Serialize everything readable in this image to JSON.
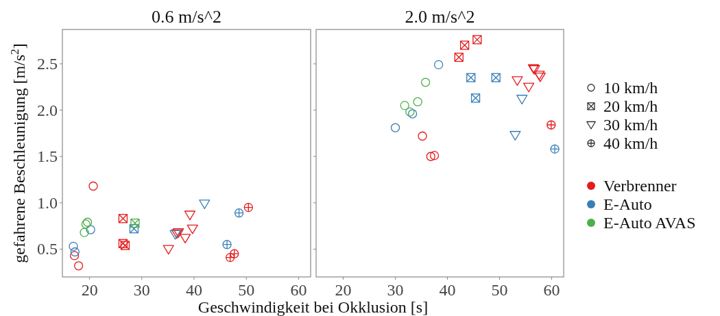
{
  "chart_data": [
    {
      "type": "scatter",
      "title": "0.6 m/s^2",
      "xlabel": "Geschwindigkeit bei Okklusion [s]",
      "ylabel": "gefahrene Beschleunigung [m/s$^{2}$]",
      "xlim": [
        14.8,
        62.3
      ],
      "xticks": [
        20,
        30,
        40,
        50,
        60
      ],
      "ylim": [
        0.2,
        2.87
      ],
      "yticks": [
        {
          "value": 0.5,
          "label": "0.5"
        },
        {
          "value": 1,
          "label": "1.0"
        },
        {
          "value": 1.5,
          "label": "1.5"
        },
        {
          "value": 2,
          "label": "2.0"
        },
        {
          "value": 2.5,
          "label": "2.5"
        }
      ],
      "grid": false,
      "series": [
        {
          "color": "#e41a1c",
          "marker": "circle",
          "x": [
            20.7,
            17.1,
            17.9
          ],
          "values": [
            1.18,
            0.43,
            0.32
          ]
        },
        {
          "color": "#377eb8",
          "marker": "circle",
          "x": [
            16.9,
            17.2,
            20.2
          ],
          "values": [
            0.53,
            0.47,
            0.71
          ]
        },
        {
          "color": "#4daf4a",
          "marker": "circle",
          "x": [
            19.0,
            19.3,
            19.6
          ],
          "values": [
            0.68,
            0.77,
            0.79
          ]
        },
        {
          "color": "#e41a1c",
          "marker": "square",
          "x": [
            26.4,
            26.4,
            26.8
          ],
          "values": [
            0.83,
            0.56,
            0.54
          ]
        },
        {
          "color": "#377eb8",
          "marker": "square",
          "x": [
            28.5
          ],
          "values": [
            0.72
          ]
        },
        {
          "color": "#4daf4a",
          "marker": "square",
          "x": [
            28.7
          ],
          "values": [
            0.78
          ]
        },
        {
          "color": "#e41a1c",
          "marker": "triangle",
          "x": [
            35.1,
            36.7,
            37.0,
            38.3,
            39.2,
            39.7
          ],
          "values": [
            0.5,
            0.67,
            0.68,
            0.62,
            0.87,
            0.72
          ]
        },
        {
          "color": "#377eb8",
          "marker": "triangle",
          "x": [
            42.0,
            36.4
          ],
          "values": [
            0.99,
            0.66
          ]
        },
        {
          "color": "#e41a1c",
          "marker": "cross",
          "x": [
            50.4,
            46.9,
            47.7
          ],
          "values": [
            0.95,
            0.41,
            0.45
          ]
        },
        {
          "color": "#377eb8",
          "marker": "cross",
          "x": [
            48.6,
            46.3
          ],
          "values": [
            0.89,
            0.55
          ]
        }
      ]
    },
    {
      "type": "scatter",
      "title": "2.0 m/s^2",
      "xlim": [
        14.8,
        62.3
      ],
      "xticks": [
        20,
        30,
        40,
        50,
        60
      ],
      "ylim": [
        0.2,
        2.87
      ],
      "yticks": [
        0.5,
        1,
        1.5,
        2,
        2.5
      ],
      "tick_labels": "x",
      "grid": false,
      "annotations": [
        "10 km/h",
        "20 km/h",
        "30 km/h",
        "40 km/h",
        "Verbrenner",
        "E-Auto",
        "E-Auto AVAS"
      ],
      "series": [
        {
          "color": "#e41a1c",
          "marker": "circle",
          "x": [
            35.2,
            36.8,
            37.5
          ],
          "values": [
            1.72,
            1.5,
            1.51
          ]
        },
        {
          "color": "#377eb8",
          "marker": "circle",
          "x": [
            38.3,
            30.0,
            33.3
          ],
          "values": [
            2.49,
            1.81,
            1.96
          ]
        },
        {
          "color": "#4daf4a",
          "marker": "circle",
          "x": [
            35.8,
            31.8,
            34.3,
            32.8
          ],
          "values": [
            2.3,
            2.05,
            2.09,
            1.98
          ]
        },
        {
          "color": "#e41a1c",
          "marker": "square",
          "x": [
            45.7,
            43.3,
            42.2
          ],
          "values": [
            2.76,
            2.7,
            2.57
          ]
        },
        {
          "color": "#377eb8",
          "marker": "square",
          "x": [
            44.5,
            49.3,
            45.4
          ],
          "values": [
            2.35,
            2.35,
            2.13
          ]
        },
        {
          "color": "#e41a1c",
          "marker": "triangle",
          "x": [
            56.5,
            56.7,
            57.6,
            57.8,
            53.4,
            55.6
          ],
          "values": [
            2.45,
            2.44,
            2.38,
            2.36,
            2.32,
            2.25
          ]
        },
        {
          "color": "#377eb8",
          "marker": "triangle",
          "x": [
            54.3,
            53.0
          ],
          "values": [
            2.12,
            1.73
          ]
        },
        {
          "color": "#e41a1c",
          "marker": "cross",
          "x": [
            59.9
          ],
          "values": [
            1.84
          ]
        },
        {
          "color": "#377eb8",
          "marker": "cross",
          "x": [
            60.6
          ],
          "values": [
            1.58
          ]
        }
      ]
    }
  ]
}
